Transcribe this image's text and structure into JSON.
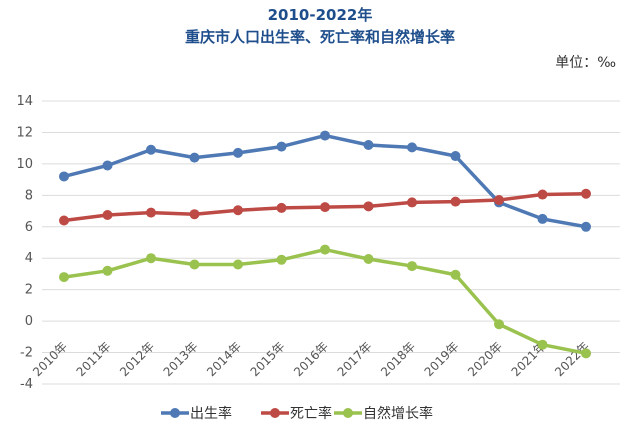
{
  "chart_data": {
    "type": "line",
    "title": "2010-2022年",
    "subtitle": "重庆市人口出生率、死亡率和自然增长率",
    "unit_label": "单位：‰",
    "categories": [
      "2010年",
      "2011年",
      "2012年",
      "2013年",
      "2014年",
      "2015年",
      "2016年",
      "2017年",
      "2018年",
      "2019年",
      "2020年",
      "2021年",
      "2022年"
    ],
    "ylim": [
      -4,
      14
    ],
    "yticks": [
      -4,
      -2,
      0,
      2,
      4,
      6,
      8,
      10,
      12,
      14
    ],
    "grid": true,
    "legend_position": "bottom",
    "series": [
      {
        "name": "出生率",
        "color": "#4e79b4",
        "values": [
          9.2,
          9.9,
          10.9,
          10.4,
          10.7,
          11.1,
          11.8,
          11.2,
          11.05,
          10.5,
          7.55,
          6.5,
          6.0
        ]
      },
      {
        "name": "死亡率",
        "color": "#bd4a45",
        "values": [
          6.4,
          6.75,
          6.9,
          6.8,
          7.05,
          7.2,
          7.25,
          7.3,
          7.55,
          7.6,
          7.7,
          8.05,
          8.1
        ]
      },
      {
        "name": "自然增长率",
        "color": "#9ac24e",
        "values": [
          2.8,
          3.2,
          4.0,
          3.6,
          3.6,
          3.9,
          4.55,
          3.95,
          3.5,
          2.95,
          -0.2,
          -1.5,
          -2.05
        ]
      }
    ]
  }
}
